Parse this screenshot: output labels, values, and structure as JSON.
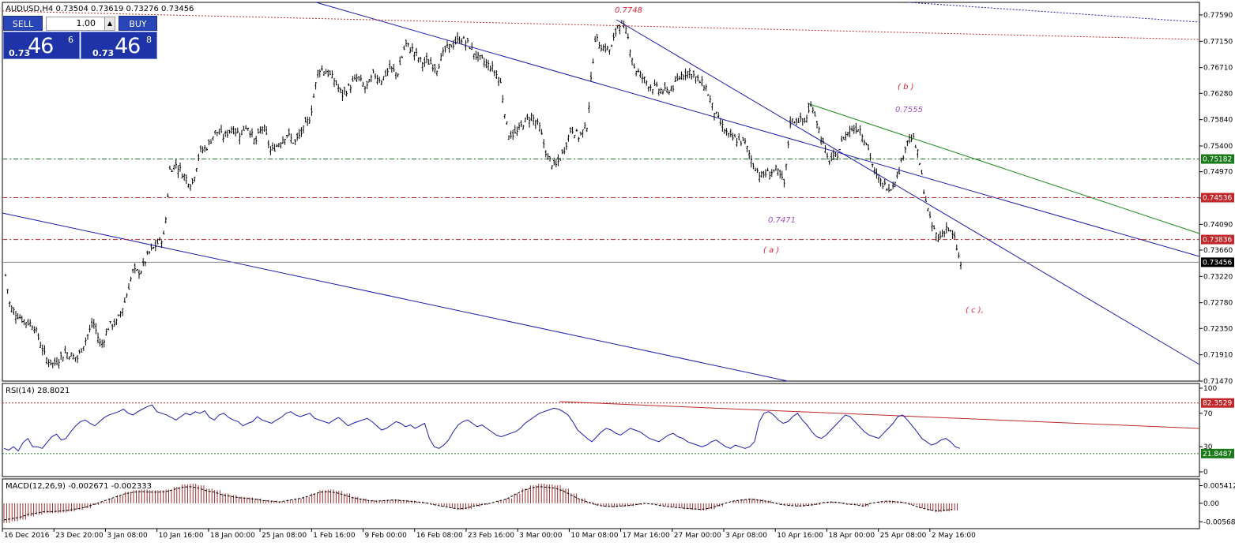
{
  "window": {
    "symbol_caption": "AUDUSD,H4  0.73504 0.73619 0.73276 0.73456"
  },
  "trade_panel": {
    "sell_label": "SELL",
    "buy_label": "BUY",
    "lot_value": "1.00",
    "sell_prefix": "0.73",
    "sell_big": "46",
    "sell_sup": "6",
    "buy_prefix": "0.73",
    "buy_big": "46",
    "buy_sup": "8"
  },
  "colors": {
    "bar": "#000000",
    "channel": "#1c1cb0",
    "green_line": "#1a8a1a",
    "red_level": "#c0282a",
    "green_level": "#1a7a1a",
    "rsi_line": "#1c1cb0",
    "macd_hist": "#9b3030",
    "wave_label": "#d8283b",
    "price_note": "#a050c0"
  },
  "chart_data": [
    {
      "type": "ohlc",
      "title": "AUDUSD,H4",
      "caption_values": {
        "open": 0.73504,
        "high": 0.73619,
        "low": 0.73276,
        "close": 0.73456
      },
      "ylim": [
        0.7147,
        0.778
      ],
      "yticks": [
        "0.77590",
        "0.77150",
        "0.76710",
        "0.76280",
        "0.75840",
        "0.75400",
        "0.74970",
        "0.74530",
        "0.74090",
        "0.73660",
        "0.73220",
        "0.72780",
        "0.72350",
        "0.71910",
        "0.71470"
      ],
      "xticks": [
        "16 Dec 2016",
        "23 Dec 20:00",
        "3 Jan 08:00",
        "10 Jan 16:00",
        "18 Jan 00:00",
        "25 Jan 08:00",
        "1 Feb 16:00",
        "9 Feb 00:00",
        "16 Feb 08:00",
        "23 Feb 16:00",
        "3 Mar 00:00",
        "10 Mar 08:00",
        "17 Mar 16:00",
        "27 Mar 00:00",
        "3 Apr 08:00",
        "10 Apr 16:00",
        "18 Apr 00:00",
        "25 Apr 08:00",
        "2 May 16:00"
      ],
      "price_path": [
        [
          0,
          0.736
        ],
        [
          10,
          0.727
        ],
        [
          25,
          0.725
        ],
        [
          40,
          0.724
        ],
        [
          55,
          0.7185
        ],
        [
          65,
          0.7175
        ],
        [
          80,
          0.7195
        ],
        [
          95,
          0.7185
        ],
        [
          105,
          0.7215
        ],
        [
          115,
          0.7245
        ],
        [
          125,
          0.7205
        ],
        [
          135,
          0.724
        ],
        [
          145,
          0.7245
        ],
        [
          155,
          0.728
        ],
        [
          165,
          0.733
        ],
        [
          175,
          0.733
        ],
        [
          185,
          0.736
        ],
        [
          195,
          0.7375
        ],
        [
          205,
          0.739
        ],
        [
          212,
          0.75
        ],
        [
          220,
          0.751
        ],
        [
          230,
          0.749
        ],
        [
          240,
          0.7475
        ],
        [
          250,
          0.753
        ],
        [
          260,
          0.754
        ],
        [
          270,
          0.7565
        ],
        [
          280,
          0.7555
        ],
        [
          290,
          0.757
        ],
        [
          300,
          0.756
        ],
        [
          310,
          0.7575
        ],
        [
          320,
          0.7545
        ],
        [
          330,
          0.7575
        ],
        [
          340,
          0.753
        ],
        [
          350,
          0.7545
        ],
        [
          360,
          0.756
        ],
        [
          370,
          0.7545
        ],
        [
          380,
          0.7565
        ],
        [
          390,
          0.759
        ],
        [
          400,
          0.767
        ],
        [
          410,
          0.7665
        ],
        [
          420,
          0.765
        ],
        [
          430,
          0.7625
        ],
        [
          440,
          0.764
        ],
        [
          450,
          0.7655
        ],
        [
          460,
          0.7635
        ],
        [
          470,
          0.766
        ],
        [
          480,
          0.765
        ],
        [
          490,
          0.767
        ],
        [
          500,
          0.766
        ],
        [
          510,
          0.771
        ],
        [
          520,
          0.77
        ],
        [
          530,
          0.768
        ],
        [
          540,
          0.768
        ],
        [
          550,
          0.767
        ],
        [
          560,
          0.77
        ],
        [
          570,
          0.771
        ],
        [
          580,
          0.772
        ],
        [
          590,
          0.771
        ],
        [
          600,
          0.769
        ],
        [
          610,
          0.768
        ],
        [
          620,
          0.767
        ],
        [
          630,
          0.765
        ],
        [
          640,
          0.756
        ],
        [
          650,
          0.756
        ],
        [
          660,
          0.758
        ],
        [
          670,
          0.759
        ],
        [
          680,
          0.757
        ],
        [
          690,
          0.752
        ],
        [
          700,
          0.7505
        ],
        [
          710,
          0.753
        ],
        [
          720,
          0.757
        ],
        [
          730,
          0.7555
        ],
        [
          740,
          0.7575
        ],
        [
          750,
          0.772
        ],
        [
          760,
          0.7705
        ],
        [
          770,
          0.77
        ],
        [
          780,
          0.7748
        ],
        [
          790,
          0.773
        ],
        [
          800,
          0.767
        ],
        [
          810,
          0.7655
        ],
        [
          820,
          0.764
        ],
        [
          830,
          0.7635
        ],
        [
          840,
          0.763
        ],
        [
          850,
          0.764
        ],
        [
          860,
          0.766
        ],
        [
          870,
          0.7665
        ],
        [
          880,
          0.765
        ],
        [
          890,
          0.764
        ],
        [
          900,
          0.76
        ],
        [
          910,
          0.7575
        ],
        [
          920,
          0.7555
        ],
        [
          930,
          0.755
        ],
        [
          940,
          0.7545
        ],
        [
          950,
          0.751
        ],
        [
          960,
          0.749
        ],
        [
          970,
          0.7495
        ],
        [
          980,
          0.75
        ],
        [
          990,
          0.7475
        ],
        [
          997,
          0.758
        ],
        [
          1005,
          0.7585
        ],
        [
          1015,
          0.758
        ],
        [
          1025,
          0.761
        ],
        [
          1035,
          0.756
        ],
        [
          1045,
          0.7515
        ],
        [
          1055,
          0.752
        ],
        [
          1065,
          0.7555
        ],
        [
          1075,
          0.757
        ],
        [
          1085,
          0.757
        ],
        [
          1095,
          0.754
        ],
        [
          1105,
          0.749
        ],
        [
          1115,
          0.7475
        ],
        [
          1125,
          0.747
        ],
        [
          1135,
          0.75
        ],
        [
          1145,
          0.755
        ],
        [
          1152,
          0.7555
        ],
        [
          1160,
          0.752
        ],
        [
          1167,
          0.746
        ],
        [
          1175,
          0.741
        ],
        [
          1185,
          0.7385
        ],
        [
          1195,
          0.7405
        ],
        [
          1205,
          0.7385
        ],
        [
          1213,
          0.734
        ]
      ],
      "horizontal_levels": [
        {
          "price": 0.75182,
          "label": "0.75182",
          "color": "green"
        },
        {
          "price": 0.74536,
          "label": "0.74536",
          "color": "red"
        },
        {
          "price": 0.73836,
          "label": "0.73836",
          "color": "red"
        },
        {
          "price": 0.73456,
          "label": "0.73456",
          "color": "current"
        }
      ],
      "annotations": [
        {
          "text": "0.7748",
          "kind": "wave"
        },
        {
          "text": "( b )",
          "kind": "wave"
        },
        {
          "text": "0.7555",
          "kind": "note"
        },
        {
          "text": "0.7471",
          "kind": "note"
        },
        {
          "text": "( a )",
          "kind": "wave"
        },
        {
          "text": "( c ),",
          "kind": "wave"
        }
      ]
    },
    {
      "type": "line",
      "title": "RSI(14) 28.8021",
      "ylim": [
        0,
        100
      ],
      "yticks": [
        "100",
        "70",
        "30",
        "0"
      ],
      "levels": [
        {
          "value": 82.3529,
          "label": "82.3529",
          "color": "red"
        },
        {
          "value": 21.8487,
          "label": "21.8487",
          "color": "green"
        }
      ],
      "values": [
        28,
        26,
        30,
        25,
        35,
        40,
        30,
        30,
        28,
        35,
        42,
        45,
        38,
        40,
        48,
        55,
        60,
        62,
        58,
        55,
        60,
        65,
        68,
        70,
        72,
        75,
        70,
        68,
        72,
        75,
        78,
        80,
        72,
        70,
        68,
        65,
        62,
        66,
        70,
        68,
        72,
        70,
        73,
        65,
        62,
        68,
        70,
        65,
        62,
        60,
        55,
        58,
        60,
        66,
        62,
        60,
        58,
        62,
        65,
        70,
        72,
        68,
        66,
        68,
        70,
        64,
        62,
        60,
        58,
        62,
        65,
        60,
        55,
        58,
        60,
        62,
        64,
        60,
        55,
        50,
        52,
        56,
        60,
        58,
        54,
        56,
        52,
        55,
        58,
        40,
        30,
        28,
        32,
        38,
        48,
        56,
        60,
        62,
        58,
        54,
        56,
        52,
        48,
        44,
        42,
        44,
        46,
        48,
        52,
        58,
        62,
        66,
        70,
        72,
        74,
        76,
        75,
        72,
        68,
        60,
        50,
        45,
        40,
        36,
        42,
        48,
        52,
        50,
        46,
        44,
        48,
        52,
        50,
        48,
        44,
        40,
        38,
        36,
        40,
        44,
        46,
        42,
        40,
        36,
        34,
        32,
        30,
        32,
        36,
        38,
        34,
        30,
        28,
        32,
        30,
        28,
        30,
        36,
        60,
        70,
        72,
        68,
        62,
        58,
        60,
        66,
        70,
        62,
        56,
        48,
        42,
        40,
        44,
        50,
        56,
        62,
        68,
        66,
        60,
        54,
        48,
        44,
        42,
        40,
        46,
        52,
        58,
        66,
        68,
        62,
        55,
        48,
        40,
        36,
        32,
        34,
        38,
        40,
        36,
        30,
        28
      ]
    },
    {
      "type": "bar",
      "title": "MACD(12,26,9) -0.002671 -0.002333",
      "yticks": [
        "0.005412",
        "0.00",
        "-0.005682"
      ],
      "ylim": [
        -0.0068,
        0.0065
      ],
      "values": [
        -0.006,
        -0.0055,
        -0.005,
        -0.004,
        -0.0035,
        -0.003,
        -0.003,
        -0.0028,
        -0.0025,
        -0.002,
        -0.0015,
        -0.0005,
        0.0005,
        0.0015,
        0.0025,
        0.0035,
        0.004,
        0.0042,
        0.004,
        0.004,
        0.0042,
        0.005,
        0.0058,
        0.006,
        0.0055,
        0.0045,
        0.004,
        0.003,
        0.0025,
        0.002,
        0.0018,
        0.0015,
        0.001,
        0.0008,
        0.0005,
        0.001,
        0.0015,
        0.002,
        0.003,
        0.004,
        0.0042,
        0.0038,
        0.003,
        0.002,
        0.0015,
        0.001,
        0.0008,
        0.001,
        0.0012,
        0.001,
        0.0008,
        0.0005,
        0.0002,
        -0.0005,
        -0.001,
        -0.0015,
        -0.002,
        -0.0018,
        -0.001,
        -0.0005,
        0.0,
        0.0008,
        0.0015,
        0.003,
        0.0045,
        0.0055,
        0.006,
        0.0058,
        0.0055,
        0.0045,
        0.003,
        0.0015,
        0.0005,
        -0.0005,
        -0.001,
        -0.0012,
        -0.001,
        -0.0008,
        -0.0005,
        0.0,
        -0.0003,
        -0.0008,
        -0.0012,
        -0.0015,
        -0.0018,
        -0.002,
        -0.0022,
        -0.0018,
        -0.001,
        0.0,
        0.0008,
        0.0012,
        0.0015,
        0.0012,
        0.0008,
        0.0002,
        -0.0005,
        -0.0008,
        -0.001,
        -0.0008,
        -0.0005,
        0.0002,
        0.0005,
        0.0003,
        -0.0003,
        -0.0005,
        -0.001,
        0.0,
        0.0005,
        0.0008,
        0.0006,
        0.0003,
        -0.0005,
        -0.0015,
        -0.0022,
        -0.0027,
        -0.0025,
        -0.0022
      ]
    }
  ]
}
